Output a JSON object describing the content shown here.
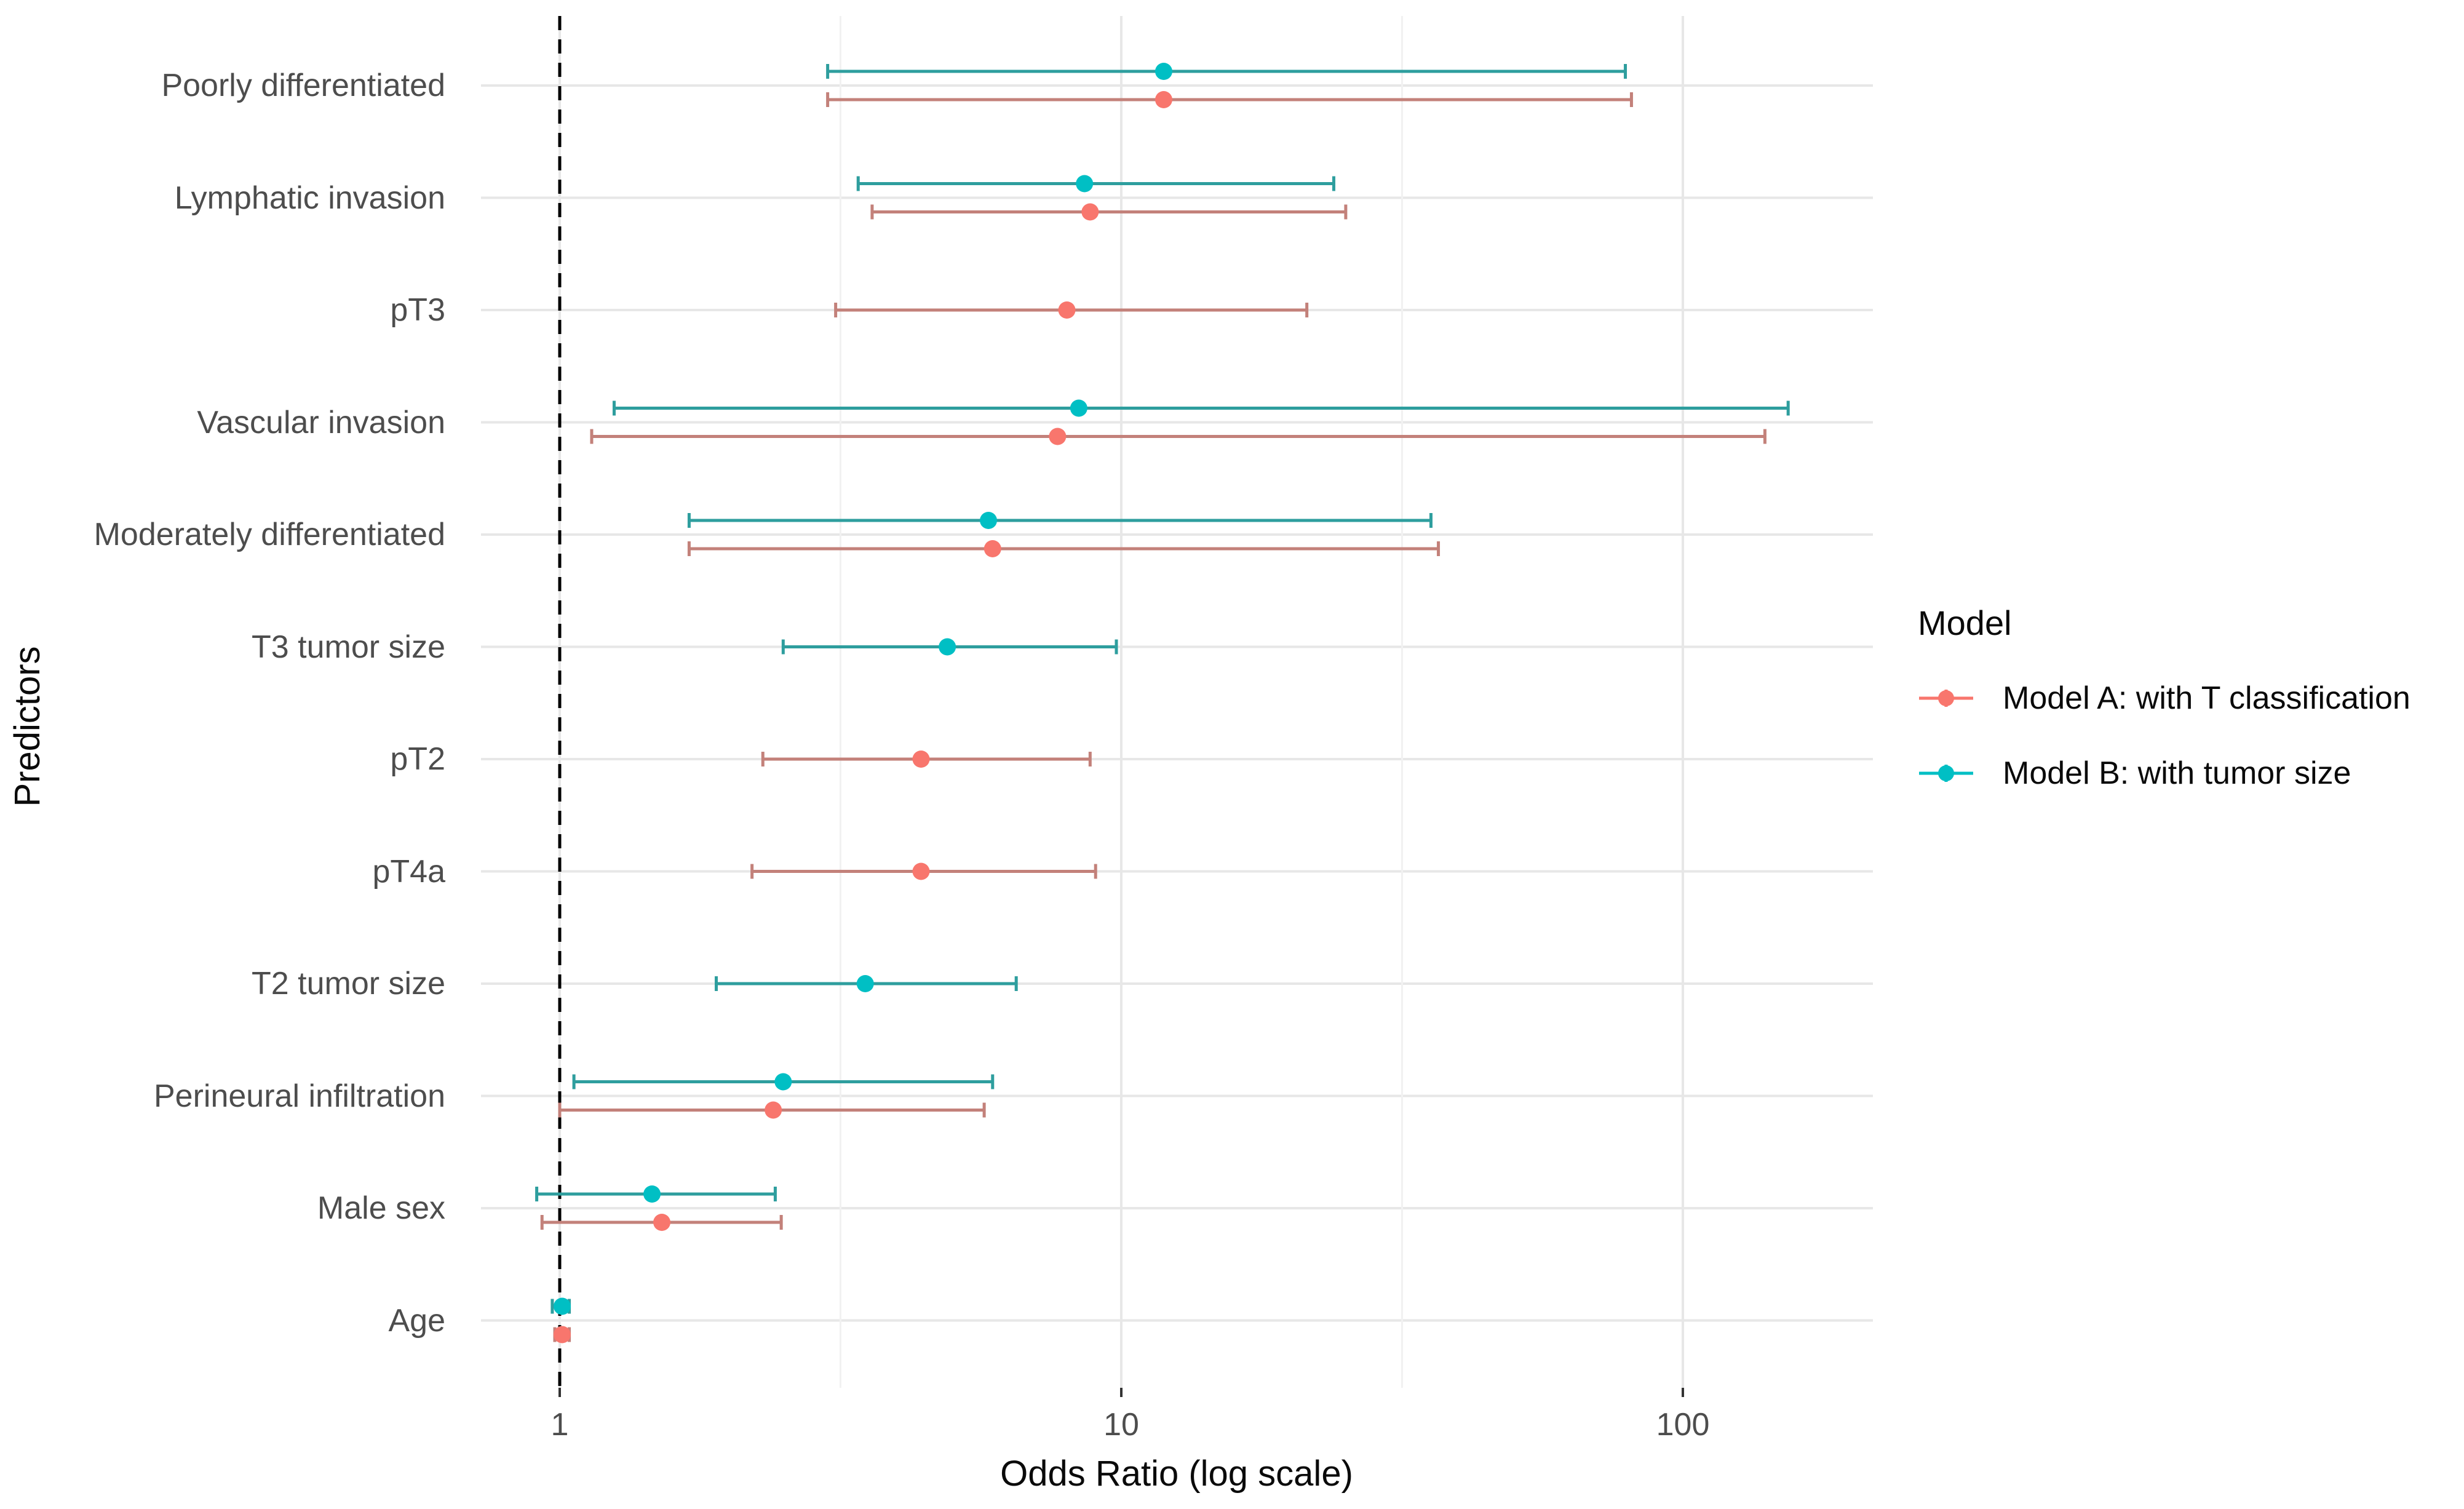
{
  "figure": {
    "background_color": "#ffffff",
    "text_color_labels": "#4d4d4d",
    "text_color_titles": "#0a0a0a"
  },
  "chart_data": {
    "type": "scatter",
    "variant": "forest-plot-dot-whisker",
    "title": "",
    "xlabel": "Odds Ratio (log scale)",
    "ylabel": "Predictors",
    "x_scale": "log10",
    "x_ticks": [
      1,
      10,
      100
    ],
    "x_tick_labels": [
      "1",
      "10",
      "100"
    ],
    "x_axis_range": [
      0.72,
      215
    ],
    "reference_line_x": 1,
    "reference_line_style": "black dashed vertical",
    "grid": {
      "horizontal_major": "one light-gray line per category",
      "vertical_major_at": [
        1,
        10,
        100
      ],
      "vertical_minor_at": [
        3.162,
        31.62
      ],
      "major_color": "#e7e7e7",
      "minor_color": "#f1f1f1"
    },
    "legend_position": "right",
    "legend": {
      "title": "Model"
    },
    "categories": [
      "Poorly differentiated",
      "Lymphatic invasion",
      "pT3",
      "Vascular invasion",
      "Moderately differentiated",
      "T3 tumor size",
      "pT2",
      "pT4a",
      "T2 tumor size",
      "Perineural infiltration",
      "Male sex",
      "Age"
    ],
    "series": [
      {
        "name": "Model A: with T classification",
        "point_color": "#F8766D",
        "line_color": "#C3817A",
        "estimates": {
          "Poorly differentiated": {
            "or": 11.9,
            "lo": 3.0,
            "hi": 81
          },
          "Lymphatic invasion": {
            "or": 8.8,
            "lo": 3.6,
            "hi": 25.1
          },
          "pT3": {
            "or": 8.0,
            "lo": 3.1,
            "hi": 21.4
          },
          "Vascular invasion": {
            "or": 7.7,
            "lo": 1.14,
            "hi": 140
          },
          "Moderately differentiated": {
            "or": 5.9,
            "lo": 1.7,
            "hi": 36.7
          },
          "pT2": {
            "or": 4.4,
            "lo": 2.3,
            "hi": 8.8
          },
          "pT4a": {
            "or": 4.4,
            "lo": 2.2,
            "hi": 9.0
          },
          "Perineural infiltration": {
            "or": 2.4,
            "lo": 1.0,
            "hi": 5.7
          },
          "Male sex": {
            "or": 1.52,
            "lo": 0.93,
            "hi": 2.48
          },
          "Age": {
            "or": 1.01,
            "lo": 0.98,
            "hi": 1.04
          }
        }
      },
      {
        "name": "Model B: with tumor size",
        "point_color": "#00BFC4",
        "line_color": "#2E9E9E",
        "estimates": {
          "Poorly differentiated": {
            "or": 11.9,
            "lo": 3.0,
            "hi": 79
          },
          "Lymphatic invasion": {
            "or": 8.6,
            "lo": 3.4,
            "hi": 23.9
          },
          "Vascular invasion": {
            "or": 8.4,
            "lo": 1.25,
            "hi": 154
          },
          "Moderately differentiated": {
            "or": 5.8,
            "lo": 1.7,
            "hi": 35.6
          },
          "T3 tumor size": {
            "or": 4.9,
            "lo": 2.5,
            "hi": 9.8
          },
          "T2 tumor size": {
            "or": 3.5,
            "lo": 1.9,
            "hi": 6.5
          },
          "Perineural infiltration": {
            "or": 2.5,
            "lo": 1.06,
            "hi": 5.9
          },
          "Male sex": {
            "or": 1.46,
            "lo": 0.91,
            "hi": 2.42
          },
          "Age": {
            "or": 1.01,
            "lo": 0.97,
            "hi": 1.04
          }
        }
      }
    ]
  }
}
